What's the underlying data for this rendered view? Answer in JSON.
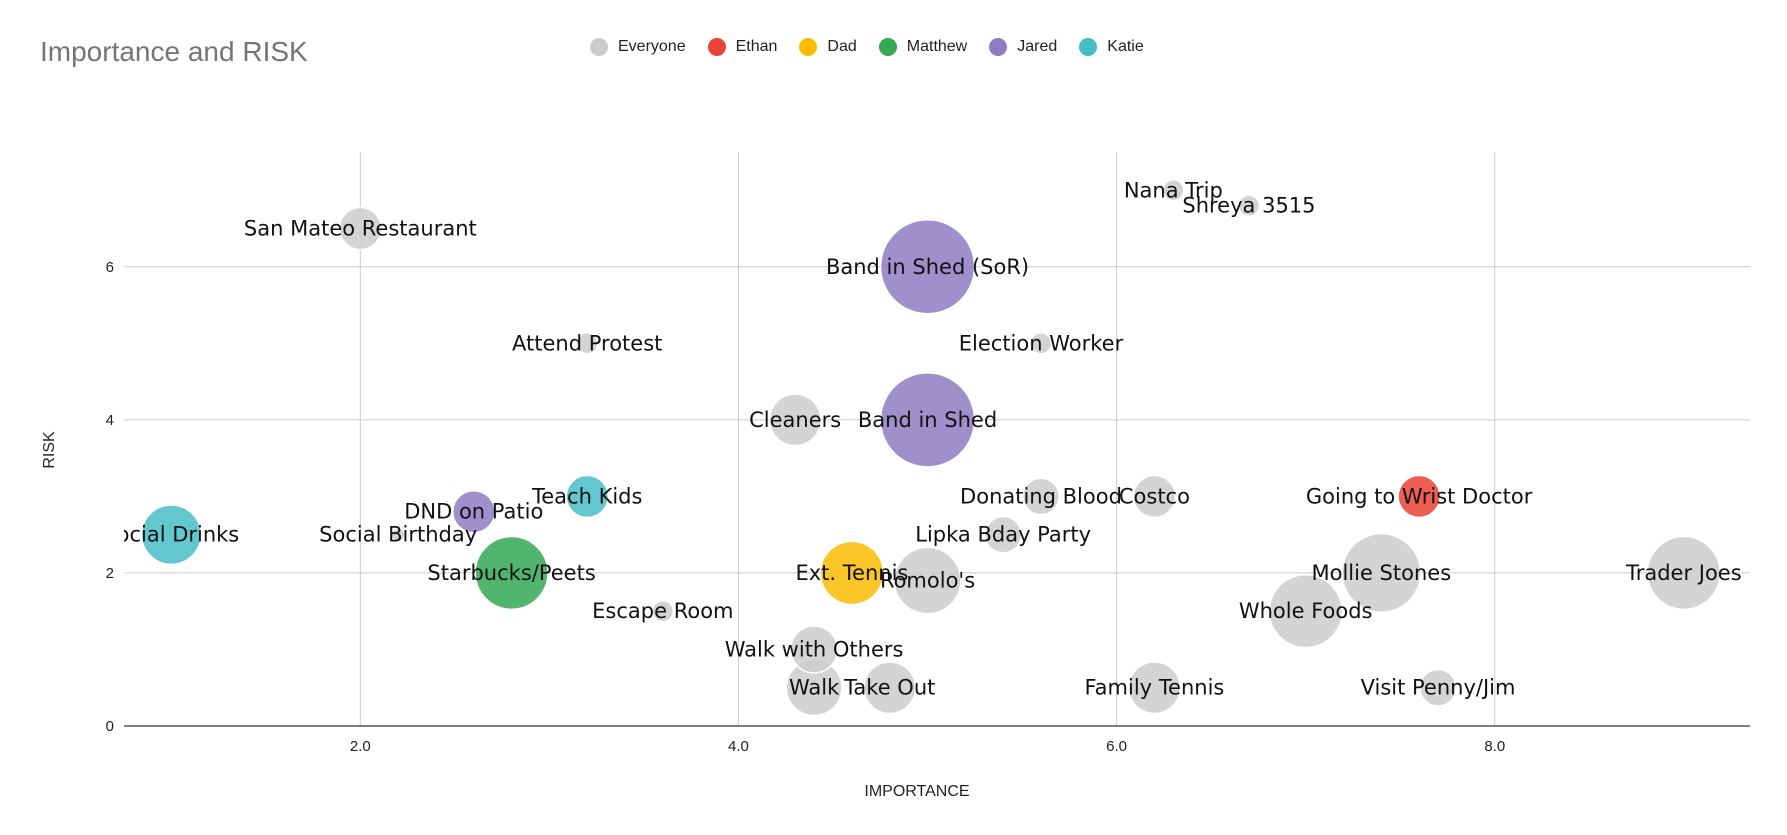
{
  "chart_data": {
    "type": "bubble",
    "title": "Importance and RISK",
    "xlabel": "IMPORTANCE",
    "ylabel": "RISK",
    "xlim": [
      0.75,
      9.35
    ],
    "ylim": [
      0,
      7.5
    ],
    "x_ticks": [
      2.0,
      4.0,
      6.0,
      8.0
    ],
    "x_tick_labels": [
      "2.0",
      "4.0",
      "6.0",
      "8.0"
    ],
    "y_ticks": [
      0,
      2,
      4,
      6
    ],
    "y_tick_labels": [
      "0",
      "2",
      "4",
      "6"
    ],
    "grid": true,
    "legend_position": "top",
    "series": [
      {
        "name": "Everyone",
        "color": "#cccccc"
      },
      {
        "name": "Ethan",
        "color": "#ea4335"
      },
      {
        "name": "Dad",
        "color": "#fbbc04"
      },
      {
        "name": "Matthew",
        "color": "#34a853"
      },
      {
        "name": "Jared",
        "color": "#8e7cc3"
      },
      {
        "name": "Katie",
        "color": "#46bdc6"
      }
    ],
    "points": [
      {
        "label": "San Mateo Restaurant",
        "series": "Everyone",
        "x": 2.0,
        "y": 6.5,
        "size": 2
      },
      {
        "label": "Nana Trip",
        "series": "Everyone",
        "x": 6.3,
        "y": 7.0,
        "size": 0.5
      },
      {
        "label": "Shreya 3515",
        "series": "Everyone",
        "x": 6.7,
        "y": 6.8,
        "size": 0.5
      },
      {
        "label": "Band in Shed (SoR)",
        "series": "Jared",
        "x": 5.0,
        "y": 6.0,
        "size": 10
      },
      {
        "label": "Attend Protest",
        "series": "Everyone",
        "x": 3.2,
        "y": 5.0,
        "size": 0.5
      },
      {
        "label": "Election Worker",
        "series": "Everyone",
        "x": 5.6,
        "y": 5.0,
        "size": 0.5
      },
      {
        "label": "Cleaners",
        "series": "Everyone",
        "x": 4.3,
        "y": 4.0,
        "size": 3
      },
      {
        "label": "Band in Shed",
        "series": "Jared",
        "x": 5.0,
        "y": 4.0,
        "size": 10
      },
      {
        "label": "Teach Kids",
        "series": "Katie",
        "x": 3.2,
        "y": 3.0,
        "size": 2
      },
      {
        "label": "DND on Patio",
        "series": "Jared",
        "x": 2.6,
        "y": 2.8,
        "size": 2
      },
      {
        "label": "Social Drinks",
        "series": "Katie",
        "x": 1.0,
        "y": 2.5,
        "size": 4
      },
      {
        "label": "Social Birthday",
        "series": "Everyone",
        "x": 2.2,
        "y": 2.5,
        "size": 0.2
      },
      {
        "label": "Starbucks/Peets",
        "series": "Matthew",
        "x": 2.8,
        "y": 2.0,
        "size": 6
      },
      {
        "label": "Donating Blood",
        "series": "Everyone",
        "x": 5.6,
        "y": 3.0,
        "size": 1.5
      },
      {
        "label": "Costco",
        "series": "Everyone",
        "x": 6.2,
        "y": 3.0,
        "size": 2
      },
      {
        "label": "Going to Wrist Doctor",
        "series": "Ethan",
        "x": 7.6,
        "y": 3.0,
        "size": 2
      },
      {
        "label": "Lipka Bday Party",
        "series": "Everyone",
        "x": 5.4,
        "y": 2.5,
        "size": 1.5
      },
      {
        "label": "Ext. Tennis",
        "series": "Dad",
        "x": 4.6,
        "y": 2.0,
        "size": 4.5
      },
      {
        "label": "Romolo's",
        "series": "Everyone",
        "x": 5.0,
        "y": 1.9,
        "size": 5
      },
      {
        "label": "Mollie Stones",
        "series": "Everyone",
        "x": 7.4,
        "y": 2.0,
        "size": 7
      },
      {
        "label": "Trader Joes",
        "series": "Everyone",
        "x": 9.0,
        "y": 2.0,
        "size": 6
      },
      {
        "label": "Escape Room",
        "series": "Everyone",
        "x": 3.6,
        "y": 1.5,
        "size": 0.5
      },
      {
        "label": "Whole Foods",
        "series": "Everyone",
        "x": 7.0,
        "y": 1.5,
        "size": 6
      },
      {
        "label": "Walk with Others",
        "series": "Everyone",
        "x": 4.4,
        "y": 1.0,
        "size": 2.5
      },
      {
        "label": "Walk",
        "series": "Everyone",
        "x": 4.4,
        "y": 0.5,
        "size": 3.5
      },
      {
        "label": "Take Out",
        "series": "Everyone",
        "x": 4.8,
        "y": 0.5,
        "size": 3
      },
      {
        "label": "Family Tennis",
        "series": "Everyone",
        "x": 6.2,
        "y": 0.5,
        "size": 3
      },
      {
        "label": "Visit Penny/Jim",
        "series": "Everyone",
        "x": 7.7,
        "y": 0.5,
        "size": 1.5
      }
    ]
  }
}
